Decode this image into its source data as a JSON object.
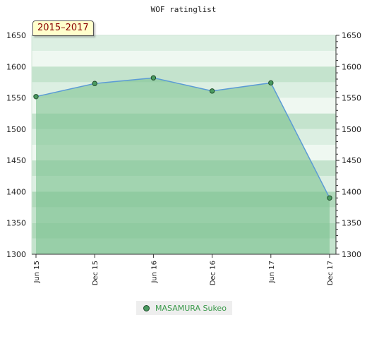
{
  "period_label": "2015–2017",
  "chart_data": {
    "type": "area",
    "title": "WOF ratinglist",
    "categories": [
      "Jun 15",
      "Dec 15",
      "Jun 16",
      "Dec 16",
      "Jun 17",
      "Dec 17"
    ],
    "series": [
      {
        "name": "MASAMURA Sukeo",
        "values": [
          1552,
          1573,
          1582,
          1561,
          1574,
          1390
        ]
      }
    ],
    "ylim": [
      1300,
      1650
    ],
    "yticks": [
      1300,
      1350,
      1400,
      1450,
      1500,
      1550,
      1600,
      1650
    ],
    "grid": true,
    "legend": "bottom",
    "colors": {
      "line": "#5b9bd5",
      "fill": "#7bc290",
      "marker": "#4a9a60"
    }
  }
}
